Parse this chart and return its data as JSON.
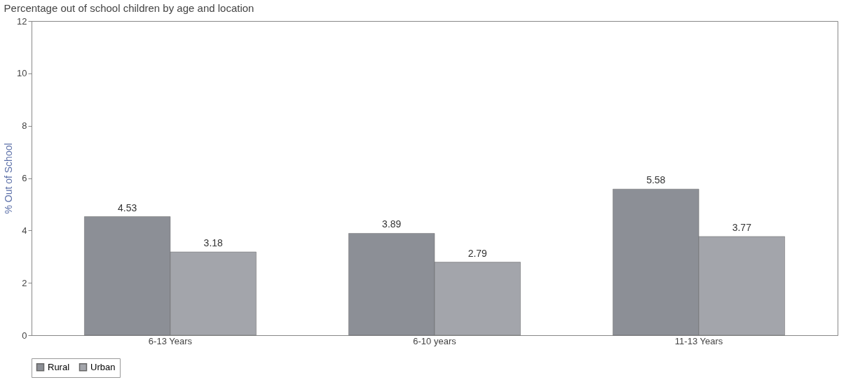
{
  "chart_data": {
    "type": "bar",
    "title": "Percentage out of school children by age and location",
    "ylabel": "% Out of School",
    "categories": [
      "6-13 Years",
      "6-10 years",
      "11-13 Years"
    ],
    "series": [
      {
        "name": "Rural",
        "color": "#8c8f96",
        "values": [
          4.53,
          3.89,
          5.58
        ]
      },
      {
        "name": "Urban",
        "color": "#a3a5ab",
        "values": [
          3.18,
          2.79,
          3.77
        ]
      }
    ],
    "ylim": [
      0,
      12
    ],
    "yticks": [
      0,
      2,
      4,
      6,
      8,
      10,
      12
    ],
    "grid": false,
    "legend": "bottom",
    "data_labels": true
  }
}
